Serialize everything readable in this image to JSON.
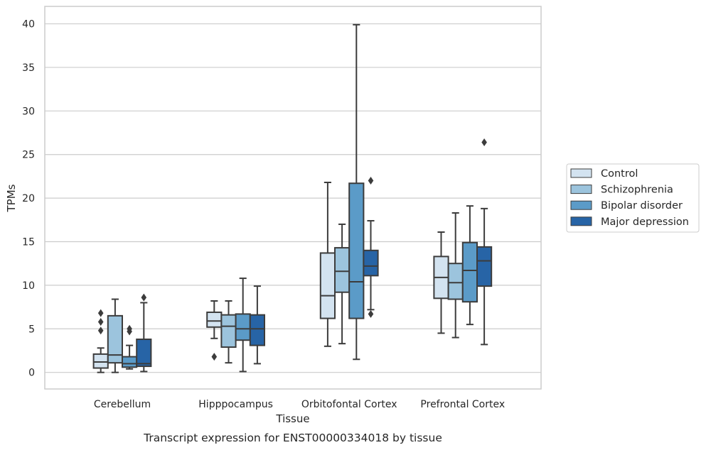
{
  "caption": "Transcript expression for ENST00000334018 by tissue",
  "chart_data": {
    "type": "box",
    "xlabel": "Tissue",
    "ylabel": "TPMs",
    "ylim": [
      -1.9,
      42
    ],
    "yticks": [
      0,
      5,
      10,
      15,
      20,
      25,
      30,
      35,
      40
    ],
    "grid": "horizontal",
    "legend_position": "right, outside plot",
    "categories": [
      "Cerebellum",
      "Hipppocampus",
      "Orbitofontal Cortex",
      "Prefrontal Cortex"
    ],
    "series": [
      {
        "name": "Control",
        "color": "#d3e3f0",
        "boxes": [
          {
            "whislo": 0.0,
            "q1": 0.5,
            "med": 1.2,
            "q3": 2.1,
            "whishi": 2.8,
            "fliers": [
              4.8,
              5.8,
              6.8
            ]
          },
          {
            "whislo": 3.9,
            "q1": 5.2,
            "med": 5.9,
            "q3": 6.9,
            "whishi": 8.2,
            "fliers": [
              1.8
            ]
          },
          {
            "whislo": 3.0,
            "q1": 6.2,
            "med": 8.8,
            "q3": 13.7,
            "whishi": 21.8,
            "fliers": []
          },
          {
            "whislo": 4.5,
            "q1": 8.5,
            "med": 10.9,
            "q3": 13.3,
            "whishi": 16.1,
            "fliers": []
          }
        ]
      },
      {
        "name": "Schizophrenia",
        "color": "#9cc4dd",
        "boxes": [
          {
            "whislo": 0.0,
            "q1": 1.1,
            "med": 2.0,
            "q3": 6.5,
            "whishi": 8.4,
            "fliers": []
          },
          {
            "whislo": 1.1,
            "q1": 2.9,
            "med": 5.3,
            "q3": 6.6,
            "whishi": 8.2,
            "fliers": []
          },
          {
            "whislo": 3.3,
            "q1": 9.2,
            "med": 11.6,
            "q3": 14.3,
            "whishi": 17.0,
            "fliers": []
          },
          {
            "whislo": 4.0,
            "q1": 8.4,
            "med": 10.3,
            "q3": 12.5,
            "whishi": 18.3,
            "fliers": []
          }
        ]
      },
      {
        "name": "Bipolar disorder",
        "color": "#5b9bc8",
        "boxes": [
          {
            "whislo": 0.4,
            "q1": 0.6,
            "med": 1.0,
            "q3": 1.8,
            "whishi": 3.1,
            "fliers": [
              4.7,
              5.0
            ]
          },
          {
            "whislo": 0.1,
            "q1": 3.7,
            "med": 5.0,
            "q3": 6.7,
            "whishi": 10.8,
            "fliers": []
          },
          {
            "whislo": 1.5,
            "q1": 6.2,
            "med": 10.4,
            "q3": 21.7,
            "whishi": 39.9,
            "fliers": []
          },
          {
            "whislo": 5.5,
            "q1": 8.1,
            "med": 11.7,
            "q3": 14.9,
            "whishi": 19.1,
            "fliers": []
          }
        ]
      },
      {
        "name": "Major depression",
        "color": "#2764a6",
        "boxes": [
          {
            "whislo": 0.1,
            "q1": 0.7,
            "med": 1.0,
            "q3": 3.8,
            "whishi": 8.0,
            "fliers": [
              8.6
            ]
          },
          {
            "whislo": 1.0,
            "q1": 3.1,
            "med": 5.0,
            "q3": 6.6,
            "whishi": 9.9,
            "fliers": []
          },
          {
            "whislo": 7.2,
            "q1": 11.1,
            "med": 12.2,
            "q3": 14.0,
            "whishi": 17.4,
            "fliers": [
              6.7,
              22.0
            ]
          },
          {
            "whislo": 3.2,
            "q1": 9.9,
            "med": 12.8,
            "q3": 14.4,
            "whishi": 18.8,
            "fliers": [
              26.4
            ]
          }
        ]
      }
    ]
  }
}
